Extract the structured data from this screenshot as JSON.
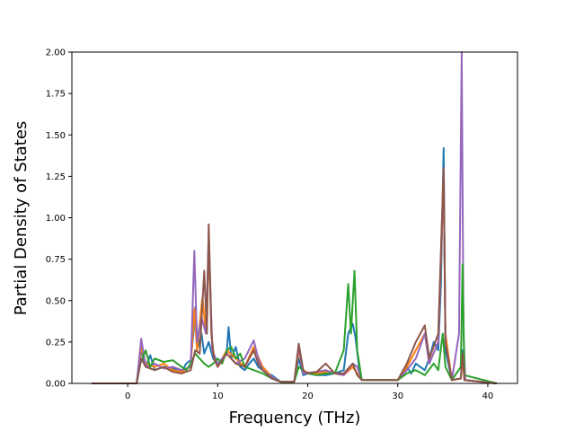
{
  "chart_data": {
    "type": "line",
    "title": "",
    "xlabel": "Frequency (THz)",
    "ylabel": "Partial Density of States",
    "xlim": [
      -6.2,
      43.3
    ],
    "ylim": [
      0,
      2.0
    ],
    "xticks": [
      0,
      10,
      20,
      30,
      40
    ],
    "yticks": [
      0.0,
      0.25,
      0.5,
      0.75,
      1.0,
      1.25,
      1.5,
      1.75,
      2.0
    ],
    "xtick_labels": [
      "0",
      "10",
      "20",
      "30",
      "40"
    ],
    "ytick_labels": [
      "0.00",
      "0.25",
      "0.50",
      "0.75",
      "1.00",
      "1.25",
      "1.50",
      "1.75",
      "2.00"
    ],
    "grid": false,
    "legend": "none",
    "series": [
      {
        "color": "#1f77b4",
        "points": [
          [
            -4,
            0
          ],
          [
            1,
            0
          ],
          [
            1.5,
            0.2
          ],
          [
            2,
            0.1
          ],
          [
            2.5,
            0.17
          ],
          [
            3,
            0.08
          ],
          [
            4,
            0.1
          ],
          [
            5,
            0.09
          ],
          [
            6,
            0.07
          ],
          [
            6.5,
            0.12
          ],
          [
            7,
            0.14
          ],
          [
            7.3,
            0.3
          ],
          [
            7.5,
            0.46
          ],
          [
            7.8,
            0.22
          ],
          [
            8.2,
            0.3
          ],
          [
            8.5,
            0.18
          ],
          [
            9,
            0.25
          ],
          [
            9.5,
            0.15
          ],
          [
            10,
            0.12
          ],
          [
            10.5,
            0.15
          ],
          [
            11,
            0.18
          ],
          [
            11.2,
            0.34
          ],
          [
            11.5,
            0.15
          ],
          [
            12,
            0.22
          ],
          [
            12.5,
            0.1
          ],
          [
            13,
            0.08
          ],
          [
            13.5,
            0.12
          ],
          [
            14,
            0.15
          ],
          [
            14.5,
            0.1
          ],
          [
            15,
            0.08
          ],
          [
            15.5,
            0.06
          ],
          [
            16,
            0.05
          ],
          [
            16.5,
            0.03
          ],
          [
            17,
            0.01
          ],
          [
            18.5,
            0.01
          ],
          [
            19,
            0.15
          ],
          [
            19.5,
            0.05
          ],
          [
            20,
            0.06
          ],
          [
            21,
            0.05
          ],
          [
            22,
            0.05
          ],
          [
            23,
            0.06
          ],
          [
            24,
            0.08
          ],
          [
            24.5,
            0.3
          ],
          [
            25,
            0.36
          ],
          [
            25.3,
            0.28
          ],
          [
            25.7,
            0.1
          ],
          [
            26,
            0.02
          ],
          [
            30,
            0.02
          ],
          [
            31,
            0.1
          ],
          [
            31.5,
            0.06
          ],
          [
            32,
            0.12
          ],
          [
            33,
            0.08
          ],
          [
            33.5,
            0.15
          ],
          [
            34,
            0.25
          ],
          [
            34.5,
            0.2
          ],
          [
            34.8,
            0.6
          ],
          [
            35.1,
            1.42
          ],
          [
            35.3,
            0.2
          ],
          [
            36,
            0.02
          ],
          [
            37,
            0.03
          ],
          [
            37.2,
            0.2
          ],
          [
            37.4,
            0.02
          ],
          [
            41,
            0
          ]
        ]
      },
      {
        "color": "#ff7f0e",
        "points": [
          [
            -4,
            0
          ],
          [
            1,
            0
          ],
          [
            1.5,
            0.22
          ],
          [
            2,
            0.12
          ],
          [
            3,
            0.1
          ],
          [
            4,
            0.12
          ],
          [
            5,
            0.08
          ],
          [
            6,
            0.07
          ],
          [
            7,
            0.1
          ],
          [
            7.4,
            0.45
          ],
          [
            7.7,
            0.2
          ],
          [
            8.3,
            0.52
          ],
          [
            8.7,
            0.3
          ],
          [
            9,
            0.82
          ],
          [
            9.4,
            0.2
          ],
          [
            10,
            0.1
          ],
          [
            11,
            0.2
          ],
          [
            12,
            0.15
          ],
          [
            13,
            0.1
          ],
          [
            14,
            0.22
          ],
          [
            15,
            0.1
          ],
          [
            16,
            0.04
          ],
          [
            17,
            0.01
          ],
          [
            18.5,
            0.01
          ],
          [
            19,
            0.2
          ],
          [
            19.5,
            0.07
          ],
          [
            21,
            0.06
          ],
          [
            22,
            0.07
          ],
          [
            23,
            0.06
          ],
          [
            24,
            0.05
          ],
          [
            25,
            0.1
          ],
          [
            25.5,
            0.06
          ],
          [
            26,
            0.02
          ],
          [
            30,
            0.02
          ],
          [
            31,
            0.1
          ],
          [
            32,
            0.2
          ],
          [
            33,
            0.3
          ],
          [
            33.5,
            0.12
          ],
          [
            34.5,
            0.25
          ],
          [
            35.1,
            1.25
          ],
          [
            35.3,
            0.3
          ],
          [
            36,
            0.02
          ],
          [
            37,
            0.03
          ],
          [
            37.2,
            0.15
          ],
          [
            37.4,
            0.02
          ],
          [
            41,
            0
          ]
        ]
      },
      {
        "color": "#9467bd",
        "points": [
          [
            -4,
            0
          ],
          [
            1,
            0
          ],
          [
            1.5,
            0.27
          ],
          [
            2,
            0.1
          ],
          [
            3,
            0.12
          ],
          [
            4,
            0.09
          ],
          [
            5,
            0.1
          ],
          [
            6,
            0.08
          ],
          [
            7,
            0.1
          ],
          [
            7.4,
            0.8
          ],
          [
            7.7,
            0.25
          ],
          [
            8.2,
            0.4
          ],
          [
            8.7,
            0.3
          ],
          [
            9,
            0.9
          ],
          [
            9.4,
            0.2
          ],
          [
            10,
            0.12
          ],
          [
            11,
            0.18
          ],
          [
            12,
            0.12
          ],
          [
            13,
            0.15
          ],
          [
            14,
            0.26
          ],
          [
            14.5,
            0.15
          ],
          [
            15,
            0.08
          ],
          [
            16,
            0.04
          ],
          [
            17,
            0.01
          ],
          [
            18.5,
            0.01
          ],
          [
            19,
            0.22
          ],
          [
            19.5,
            0.06
          ],
          [
            21,
            0.07
          ],
          [
            22,
            0.08
          ],
          [
            23,
            0.06
          ],
          [
            24,
            0.05
          ],
          [
            25,
            0.12
          ],
          [
            25.5,
            0.1
          ],
          [
            26,
            0.02
          ],
          [
            30,
            0.02
          ],
          [
            31,
            0.08
          ],
          [
            32,
            0.15
          ],
          [
            33,
            0.3
          ],
          [
            33.5,
            0.12
          ],
          [
            34.5,
            0.25
          ],
          [
            35.1,
            1.3
          ],
          [
            35.3,
            0.25
          ],
          [
            36,
            0.02
          ],
          [
            36.8,
            0.3
          ],
          [
            37.1,
            2.0
          ],
          [
            37.3,
            0.3
          ],
          [
            37.5,
            0.02
          ],
          [
            41,
            0
          ]
        ]
      },
      {
        "color": "#2ca02c",
        "points": [
          [
            -4,
            0
          ],
          [
            1,
            0
          ],
          [
            1.4,
            0.12
          ],
          [
            2,
            0.2
          ],
          [
            2.5,
            0.1
          ],
          [
            3,
            0.15
          ],
          [
            4,
            0.13
          ],
          [
            5,
            0.14
          ],
          [
            6,
            0.1
          ],
          [
            6.5,
            0.08
          ],
          [
            7,
            0.12
          ],
          [
            7.5,
            0.18
          ],
          [
            8,
            0.15
          ],
          [
            8.5,
            0.12
          ],
          [
            9,
            0.1
          ],
          [
            9.5,
            0.12
          ],
          [
            10,
            0.15
          ],
          [
            10.5,
            0.12
          ],
          [
            11,
            0.2
          ],
          [
            11.5,
            0.22
          ],
          [
            12,
            0.15
          ],
          [
            12.5,
            0.18
          ],
          [
            13,
            0.1
          ],
          [
            14,
            0.08
          ],
          [
            15,
            0.06
          ],
          [
            16,
            0.03
          ],
          [
            17,
            0.01
          ],
          [
            18.5,
            0.01
          ],
          [
            19,
            0.1
          ],
          [
            20,
            0.06
          ],
          [
            21,
            0.05
          ],
          [
            22,
            0.06
          ],
          [
            23,
            0.06
          ],
          [
            24,
            0.2
          ],
          [
            24.5,
            0.6
          ],
          [
            24.8,
            0.3
          ],
          [
            25.2,
            0.68
          ],
          [
            25.5,
            0.2
          ],
          [
            26,
            0.02
          ],
          [
            30,
            0.02
          ],
          [
            31,
            0.06
          ],
          [
            32,
            0.08
          ],
          [
            33,
            0.05
          ],
          [
            34,
            0.12
          ],
          [
            34.5,
            0.08
          ],
          [
            35,
            0.3
          ],
          [
            35.3,
            0.1
          ],
          [
            36,
            0.02
          ],
          [
            37,
            0.1
          ],
          [
            37.2,
            0.72
          ],
          [
            37.4,
            0.05
          ],
          [
            41,
            0
          ]
        ]
      },
      {
        "color": "#8c564b",
        "points": [
          [
            -4,
            0
          ],
          [
            1,
            0
          ],
          [
            1.5,
            0.15
          ],
          [
            2,
            0.1
          ],
          [
            3,
            0.08
          ],
          [
            4,
            0.1
          ],
          [
            5,
            0.07
          ],
          [
            6,
            0.06
          ],
          [
            7,
            0.08
          ],
          [
            7.5,
            0.2
          ],
          [
            8,
            0.18
          ],
          [
            8.5,
            0.68
          ],
          [
            8.8,
            0.3
          ],
          [
            9,
            0.96
          ],
          [
            9.3,
            0.3
          ],
          [
            9.6,
            0.15
          ],
          [
            10,
            0.1
          ],
          [
            11,
            0.18
          ],
          [
            12,
            0.12
          ],
          [
            13,
            0.1
          ],
          [
            14,
            0.2
          ],
          [
            14.5,
            0.12
          ],
          [
            15,
            0.08
          ],
          [
            16,
            0.03
          ],
          [
            17,
            0.01
          ],
          [
            18.5,
            0.01
          ],
          [
            19,
            0.24
          ],
          [
            19.5,
            0.08
          ],
          [
            20,
            0.06
          ],
          [
            21,
            0.07
          ],
          [
            22,
            0.12
          ],
          [
            23,
            0.06
          ],
          [
            24,
            0.06
          ],
          [
            25,
            0.12
          ],
          [
            25.5,
            0.05
          ],
          [
            26,
            0.02
          ],
          [
            30,
            0.02
          ],
          [
            31,
            0.12
          ],
          [
            32,
            0.25
          ],
          [
            33,
            0.35
          ],
          [
            33.5,
            0.15
          ],
          [
            34.5,
            0.3
          ],
          [
            35.1,
            1.3
          ],
          [
            35.3,
            0.25
          ],
          [
            36,
            0.02
          ],
          [
            37,
            0.03
          ],
          [
            37.2,
            0.18
          ],
          [
            37.4,
            0.02
          ],
          [
            41,
            0
          ]
        ]
      }
    ]
  }
}
